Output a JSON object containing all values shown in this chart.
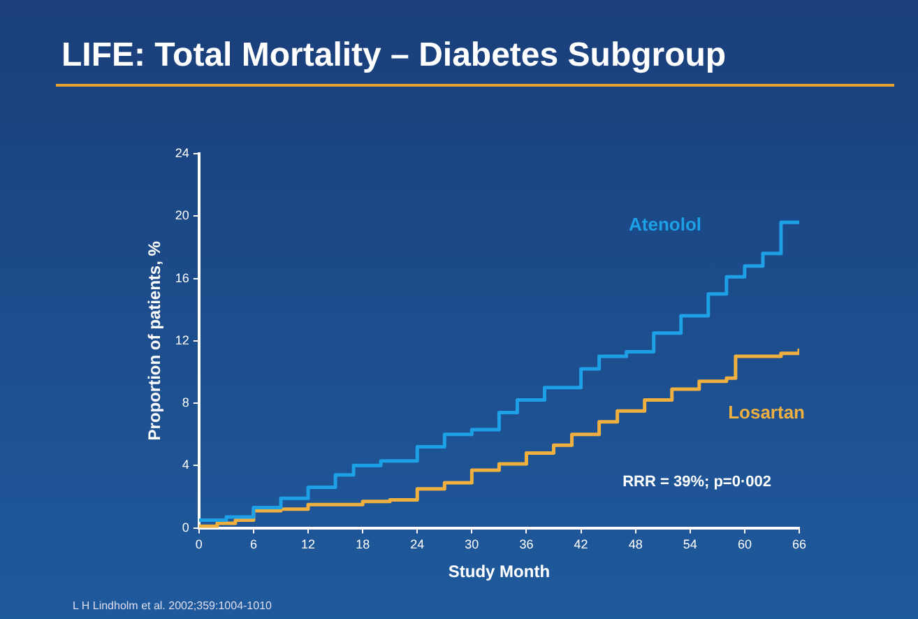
{
  "chart_data": {
    "type": "step",
    "title": "LIFE: Total Mortality – Diabetes Subgroup",
    "xlabel": "Study Month",
    "ylabel": "Proportion of patients, %",
    "xlim": [
      0,
      66
    ],
    "xticks": [
      0,
      6,
      12,
      18,
      24,
      30,
      36,
      42,
      48,
      54,
      60,
      66
    ],
    "ylim": [
      0,
      24
    ],
    "yticks": [
      0,
      4,
      8,
      12,
      16,
      20,
      24
    ],
    "grid": false,
    "legend": false,
    "annotations": [
      "RRR = 39%; p=0·002",
      "L H Lindholm et al. 2002;359:1004-1010"
    ],
    "series": [
      {
        "name": "Atenolol",
        "color": "#1ea0e6",
        "x": [
          0,
          3,
          6,
          9,
          12,
          15,
          17,
          20,
          24,
          27,
          30,
          33,
          35,
          38,
          42,
          44,
          47,
          50,
          53,
          56,
          58,
          60,
          62,
          64,
          66
        ],
        "values": [
          0.5,
          0.7,
          1.3,
          1.9,
          2.6,
          3.4,
          4.0,
          4.3,
          5.2,
          6.0,
          6.3,
          7.4,
          8.2,
          9.0,
          10.2,
          11.0,
          11.3,
          12.5,
          13.6,
          15.0,
          16.1,
          16.8,
          17.6,
          19.6,
          19.6
        ]
      },
      {
        "name": "Losartan",
        "color": "#f0b040",
        "x": [
          0,
          2,
          4,
          6,
          9,
          12,
          15,
          18,
          21,
          24,
          27,
          30,
          33,
          36,
          39,
          41,
          44,
          46,
          49,
          52,
          55,
          58,
          59,
          62,
          64,
          66
        ],
        "values": [
          0.1,
          0.3,
          0.5,
          1.1,
          1.2,
          1.5,
          1.5,
          1.7,
          1.8,
          2.5,
          2.9,
          3.7,
          4.1,
          4.8,
          5.3,
          6.0,
          6.8,
          7.5,
          8.2,
          8.9,
          9.4,
          9.6,
          11.0,
          11.0,
          11.2,
          11.5
        ]
      }
    ]
  }
}
